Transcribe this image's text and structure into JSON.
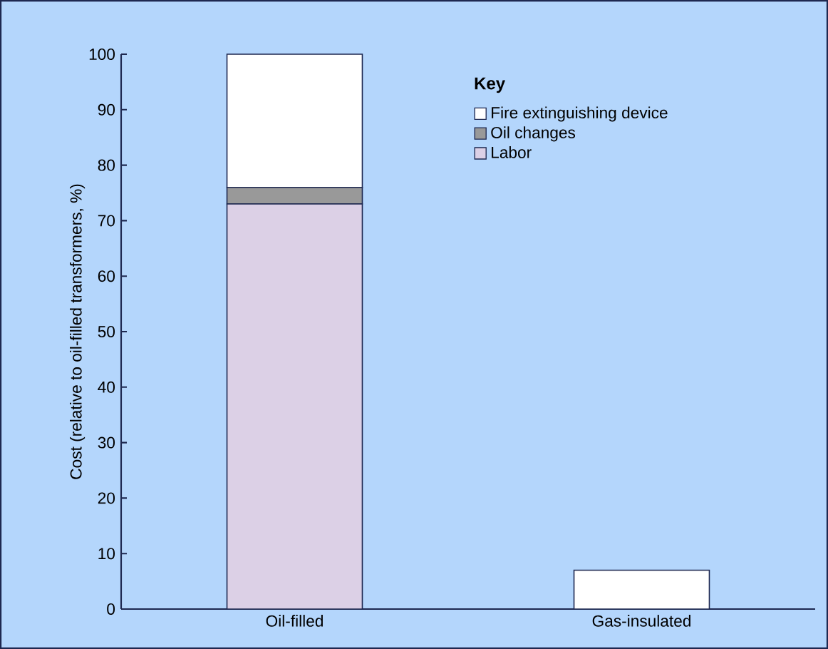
{
  "chart_data": {
    "type": "bar",
    "stacked": true,
    "ylabel": "Cost (relative to oil-filled transformers, %)",
    "legend_title": "Key",
    "legend": "top right",
    "categories": [
      "Oil-filled",
      "Gas-insulated"
    ],
    "series": [
      {
        "name": "Labor",
        "color": "#dcd0e6",
        "values": [
          73,
          0
        ]
      },
      {
        "name": "Oil changes",
        "color": "#999999",
        "values": [
          3,
          0
        ]
      },
      {
        "name": "Fire extinguishing device",
        "color": "#ffffff",
        "values": [
          24,
          7
        ]
      }
    ],
    "ylim": [
      0,
      100
    ],
    "yticks": [
      0,
      10,
      20,
      30,
      40,
      50,
      60,
      70,
      80,
      90,
      100
    ]
  }
}
